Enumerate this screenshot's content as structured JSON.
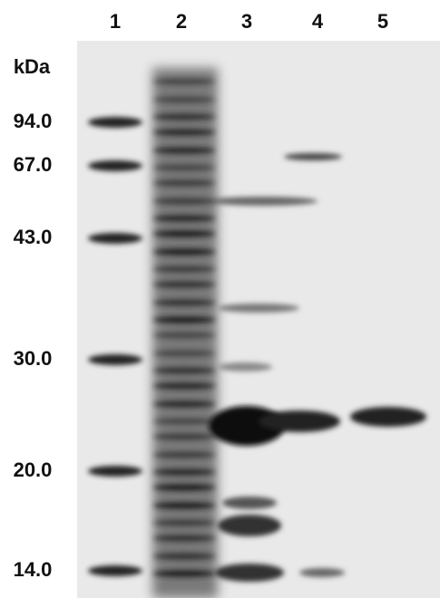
{
  "lanes": [
    "1",
    "2",
    "3",
    "4",
    "5"
  ],
  "unit": "kDa",
  "markers": [
    "94.0",
    "67.0",
    "43.0",
    "30.0",
    "20.0",
    "14.0"
  ]
}
